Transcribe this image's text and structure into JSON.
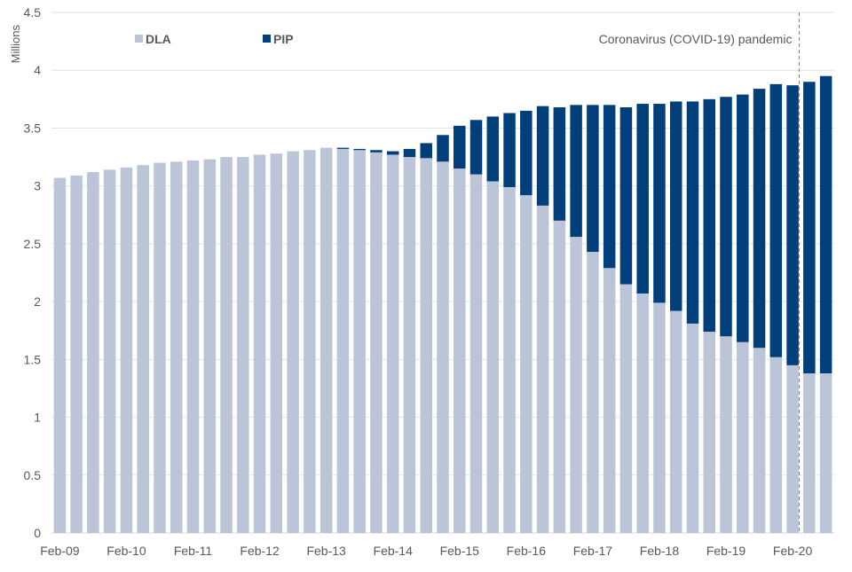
{
  "chart_data": {
    "type": "bar",
    "stacked": true,
    "title": "",
    "xlabel": "",
    "ylabel": "Millions",
    "ylim": [
      0,
      4.5
    ],
    "yticks": [
      "0",
      "0.5",
      "1",
      "1.5",
      "2",
      "2.5",
      "3",
      "3.5",
      "4",
      "4.5"
    ],
    "grid": true,
    "legend_position": "top-left",
    "annotation": {
      "text": "Coronavirus (COVID-19) pandemic",
      "at_category_index": 44.5
    },
    "x_tick_labels": [
      {
        "index": 0,
        "label": "Feb-09"
      },
      {
        "index": 4,
        "label": "Feb-10"
      },
      {
        "index": 8,
        "label": "Feb-11"
      },
      {
        "index": 12,
        "label": "Feb-12"
      },
      {
        "index": 16,
        "label": "Feb-13"
      },
      {
        "index": 20,
        "label": "Feb-14"
      },
      {
        "index": 24,
        "label": "Feb-15"
      },
      {
        "index": 28,
        "label": "Feb-16"
      },
      {
        "index": 32,
        "label": "Feb-17"
      },
      {
        "index": 36,
        "label": "Feb-18"
      },
      {
        "index": 40,
        "label": "Feb-19"
      },
      {
        "index": 44,
        "label": "Feb-20"
      }
    ],
    "categories": [
      "Feb-09",
      "May-09",
      "Aug-09",
      "Nov-09",
      "Feb-10",
      "May-10",
      "Aug-10",
      "Nov-10",
      "Feb-11",
      "May-11",
      "Aug-11",
      "Nov-11",
      "Feb-12",
      "May-12",
      "Aug-12",
      "Nov-12",
      "Feb-13",
      "May-13",
      "Aug-13",
      "Nov-13",
      "Feb-14",
      "May-14",
      "Aug-14",
      "Nov-14",
      "Feb-15",
      "May-15",
      "Aug-15",
      "Nov-15",
      "Feb-16",
      "May-16",
      "Aug-16",
      "Nov-16",
      "Feb-17",
      "May-17",
      "Aug-17",
      "Nov-17",
      "Feb-18",
      "May-18",
      "Aug-18",
      "Nov-18",
      "Feb-19",
      "May-19",
      "Aug-19",
      "Nov-19",
      "Feb-20",
      "May-20",
      "Aug-20"
    ],
    "series": [
      {
        "name": "DLA",
        "color": "#bcc5d8",
        "values": [
          3.07,
          3.09,
          3.12,
          3.14,
          3.16,
          3.18,
          3.2,
          3.21,
          3.22,
          3.23,
          3.25,
          3.25,
          3.27,
          3.28,
          3.3,
          3.31,
          3.33,
          3.32,
          3.31,
          3.29,
          3.27,
          3.25,
          3.24,
          3.21,
          3.15,
          3.1,
          3.04,
          2.99,
          2.92,
          2.83,
          2.7,
          2.56,
          2.43,
          2.29,
          2.15,
          2.07,
          1.99,
          1.92,
          1.81,
          1.74,
          1.7,
          1.65,
          1.6,
          1.52,
          1.45,
          1.38,
          1.38
        ]
      },
      {
        "name": "PIP",
        "color": "#003f7a",
        "values": [
          0,
          0,
          0,
          0,
          0,
          0,
          0,
          0,
          0,
          0,
          0,
          0,
          0,
          0,
          0,
          0,
          0,
          0.01,
          0.01,
          0.02,
          0.03,
          0.07,
          0.13,
          0.23,
          0.37,
          0.47,
          0.56,
          0.64,
          0.73,
          0.86,
          0.98,
          1.14,
          1.27,
          1.41,
          1.53,
          1.64,
          1.72,
          1.81,
          1.92,
          2.01,
          2.07,
          2.14,
          2.24,
          2.36,
          2.42,
          2.52,
          2.57
        ]
      }
    ]
  }
}
